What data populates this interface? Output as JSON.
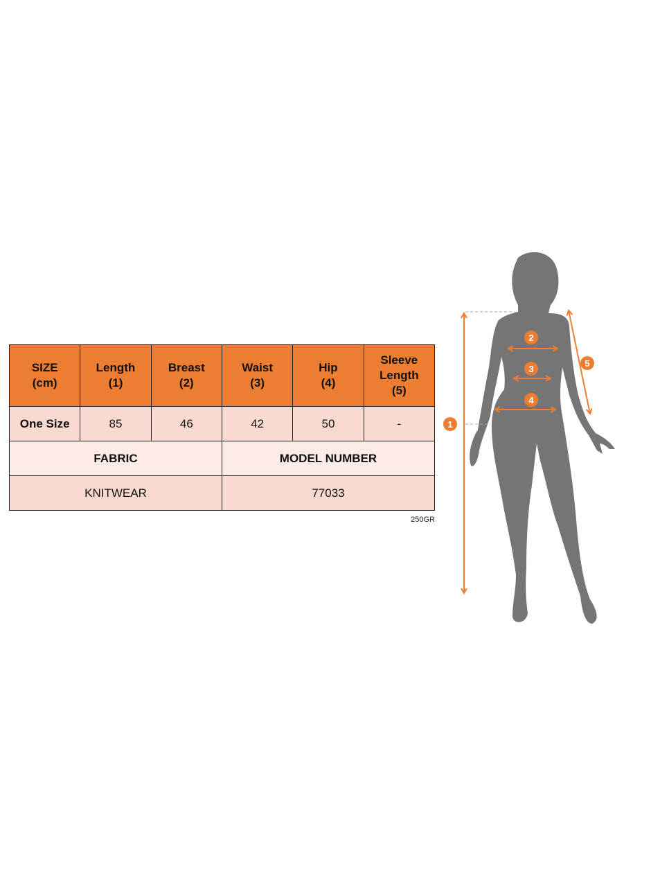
{
  "size_table": {
    "headers": [
      "SIZE (cm)",
      "Length (1)",
      "Breast (2)",
      "Waist (3)",
      "Hip (4)",
      "Sleeve Length (5)"
    ],
    "header_lines": [
      [
        "SIZE",
        "(cm)"
      ],
      [
        "Length",
        "(1)"
      ],
      [
        "Breast",
        "(2)"
      ],
      [
        "Waist",
        "(3)"
      ],
      [
        "Hip",
        "(4)"
      ],
      [
        "Sleeve",
        "Length",
        "(5)"
      ]
    ],
    "rows": [
      {
        "size": "One Size",
        "length": "85",
        "breast": "46",
        "waist": "42",
        "hip": "50",
        "sleeve_length": "-"
      }
    ],
    "fabric_label": "FABRIC",
    "model_number_label": "MODEL NUMBER",
    "fabric_value": "KNITWEAR",
    "model_number_value": "77033"
  },
  "weight": "250GR",
  "figure": {
    "badges": [
      "1",
      "2",
      "3",
      "4",
      "5"
    ],
    "accent_color": "#ed7d31",
    "silhouette_color": "#757575"
  },
  "colors": {
    "header": "#ed7d31",
    "row": "#f8dad0",
    "row_light": "#fcebe6"
  }
}
